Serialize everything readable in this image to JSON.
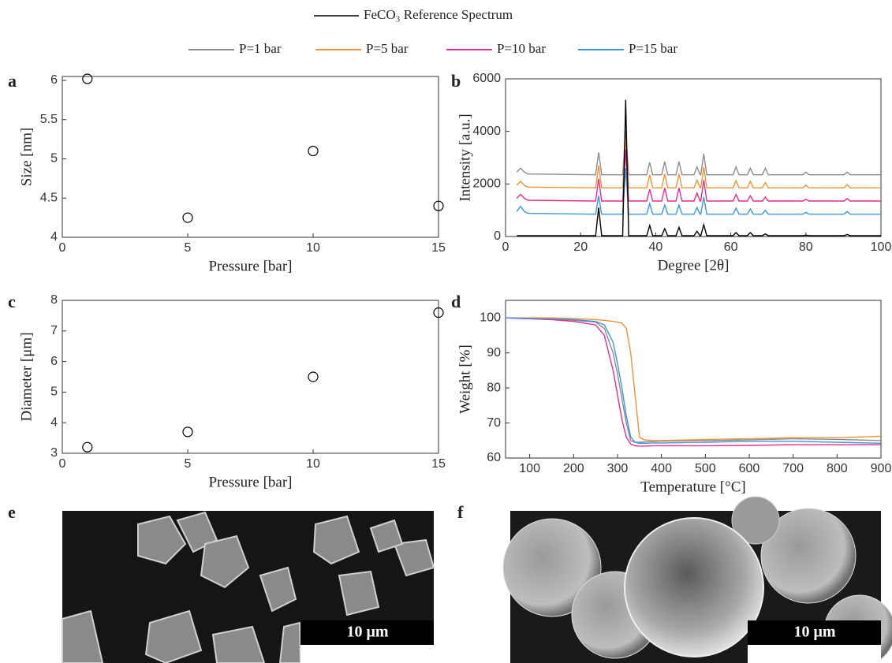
{
  "legend_title": "FeCO₃ Reference Spectrum",
  "chart_data": [
    {
      "type": "scatter",
      "panel": "a",
      "xlabel": "Pressure [bar]",
      "ylabel": "Size [nm]",
      "x": [
        1,
        5,
        10,
        15
      ],
      "values": [
        6.02,
        4.25,
        5.1,
        4.4
      ],
      "color": "#000000",
      "xlim": [
        0,
        15
      ],
      "xticks": [
        0,
        5,
        10,
        15
      ],
      "ylim": [
        4,
        6.05
      ],
      "yticks": [
        4,
        4.5,
        5,
        5.5,
        6
      ]
    },
    {
      "type": "line",
      "panel": "b",
      "xlabel": "Degree [2θ]",
      "ylabel": "Intensity [a.u.]",
      "x": [
        3,
        4,
        5,
        6,
        24,
        24.8,
        25.6,
        31.2,
        32,
        32.8,
        37.6,
        38.4,
        39.2,
        41.6,
        42.4,
        43.2,
        45.4,
        46.2,
        47,
        50.2,
        51,
        51.8,
        52,
        52.8,
        53.6,
        60.6,
        61.4,
        62.2,
        64.4,
        65.2,
        66,
        68.4,
        69.2,
        70,
        79.2,
        80,
        80.8,
        90.2,
        91,
        91.8,
        100
      ],
      "series": [
        {
          "name": "P=1 bar",
          "color": "#8c8c8c",
          "values": [
            2450,
            2600,
            2450,
            2380,
            2350,
            3200,
            2350,
            2350,
            4000,
            2350,
            2350,
            2820,
            2350,
            2350,
            2850,
            2350,
            2350,
            2850,
            2350,
            2350,
            2650,
            2350,
            2350,
            3150,
            2350,
            2350,
            2650,
            2350,
            2350,
            2600,
            2350,
            2350,
            2600,
            2350,
            2350,
            2450,
            2350,
            2350,
            2450,
            2350,
            2350
          ]
        },
        {
          "name": "P=5 bar",
          "color": "#f39234",
          "values": [
            1950,
            2100,
            1950,
            1880,
            1850,
            2700,
            1850,
            1850,
            3700,
            1850,
            1850,
            2350,
            1850,
            1850,
            2380,
            1850,
            1850,
            2380,
            1850,
            1850,
            2150,
            1850,
            1850,
            2650,
            1850,
            1850,
            2120,
            1850,
            1850,
            2100,
            1850,
            1850,
            2050,
            1850,
            1850,
            1950,
            1850,
            1850,
            1980,
            1850,
            1850
          ]
        },
        {
          "name": "P=10 bar",
          "color": "#ec2a8c",
          "values": [
            1450,
            1600,
            1450,
            1380,
            1350,
            2200,
            1350,
            1350,
            3300,
            1350,
            1350,
            1800,
            1350,
            1350,
            1850,
            1350,
            1350,
            1850,
            1350,
            1350,
            1650,
            1350,
            1350,
            2150,
            1350,
            1350,
            1600,
            1350,
            1350,
            1550,
            1350,
            1350,
            1500,
            1350,
            1350,
            1420,
            1350,
            1350,
            1450,
            1350,
            1350
          ]
        },
        {
          "name": "P=15 bar",
          "color": "#3b95e0",
          "values": [
            950,
            1150,
            950,
            880,
            850,
            1550,
            850,
            850,
            2600,
            850,
            850,
            1250,
            850,
            850,
            1200,
            850,
            850,
            1200,
            850,
            850,
            1100,
            850,
            850,
            1500,
            850,
            850,
            1080,
            850,
            850,
            1050,
            850,
            850,
            1000,
            850,
            850,
            920,
            850,
            850,
            950,
            850,
            850
          ]
        },
        {
          "color": "#000000",
          "values": [
            30,
            30,
            30,
            30,
            30,
            1100,
            30,
            30,
            5200,
            30,
            30,
            420,
            30,
            30,
            300,
            30,
            30,
            350,
            30,
            30,
            200,
            30,
            30,
            450,
            30,
            30,
            150,
            30,
            30,
            150,
            30,
            30,
            100,
            30,
            30,
            50,
            30,
            30,
            80,
            30,
            30
          ]
        }
      ],
      "xlim": [
        0,
        100
      ],
      "xticks": [
        0,
        20,
        40,
        60,
        80,
        100
      ],
      "ylim": [
        0,
        6000
      ],
      "yticks": [
        0,
        2000,
        4000,
        6000
      ]
    },
    {
      "type": "scatter",
      "panel": "c",
      "xlabel": "Pressure [bar]",
      "ylabel": "Diameter [μm]",
      "x": [
        1,
        5,
        10,
        15
      ],
      "values": [
        3.2,
        3.7,
        5.5,
        7.6
      ],
      "color": "#000000",
      "xlim": [
        0,
        15
      ],
      "xticks": [
        0,
        5,
        10,
        15
      ],
      "ylim": [
        3,
        8
      ],
      "yticks": [
        3,
        4,
        5,
        6,
        7,
        8
      ]
    },
    {
      "type": "line",
      "panel": "d",
      "xlabel": "Temperature [°C]",
      "ylabel": "Weight [%]",
      "x": [
        45,
        150,
        200,
        250,
        270,
        290,
        300,
        310,
        320,
        330,
        340,
        350,
        360,
        380,
        400,
        500,
        600,
        700,
        800,
        900
      ],
      "series": [
        {
          "color": "#8c8c8c",
          "values": [
            100,
            99.6,
            99.3,
            98.8,
            97,
            90,
            84,
            77,
            70,
            65,
            64.5,
            64.5,
            64.6,
            64.7,
            64.8,
            65,
            65.2,
            65.5,
            65.3,
            65
          ]
        },
        {
          "color": "#f39234",
          "values": [
            100,
            100,
            99.8,
            99.5,
            99.3,
            99,
            98.8,
            98.5,
            97,
            90,
            78,
            66,
            65.2,
            65,
            65,
            65.3,
            65.5,
            65.8,
            65.8,
            66.2
          ]
        },
        {
          "color": "#ec2a8c",
          "values": [
            100,
            99.5,
            99,
            98,
            95,
            85,
            78,
            71,
            66,
            64,
            63.5,
            63.4,
            63.4,
            63.5,
            63.5,
            63.5,
            63.6,
            63.8,
            63.8,
            63.8
          ]
        },
        {
          "color": "#3b95e0",
          "values": [
            100,
            99.7,
            99.5,
            99,
            98,
            93,
            87,
            80,
            72,
            66,
            64.5,
            64.2,
            64.2,
            64.3,
            64.3,
            64.5,
            64.8,
            64.8,
            64.5,
            64.2
          ]
        }
      ],
      "xlim": [
        45,
        900
      ],
      "xticks": [
        100,
        200,
        300,
        400,
        500,
        600,
        700,
        800,
        900
      ],
      "ylim": [
        60,
        105
      ],
      "yticks": [
        60,
        70,
        80,
        90,
        100
      ]
    }
  ],
  "images": [
    {
      "panel": "e",
      "scale_bar": "10 μm"
    },
    {
      "panel": "f",
      "scale_bar": "10 μm"
    }
  ]
}
